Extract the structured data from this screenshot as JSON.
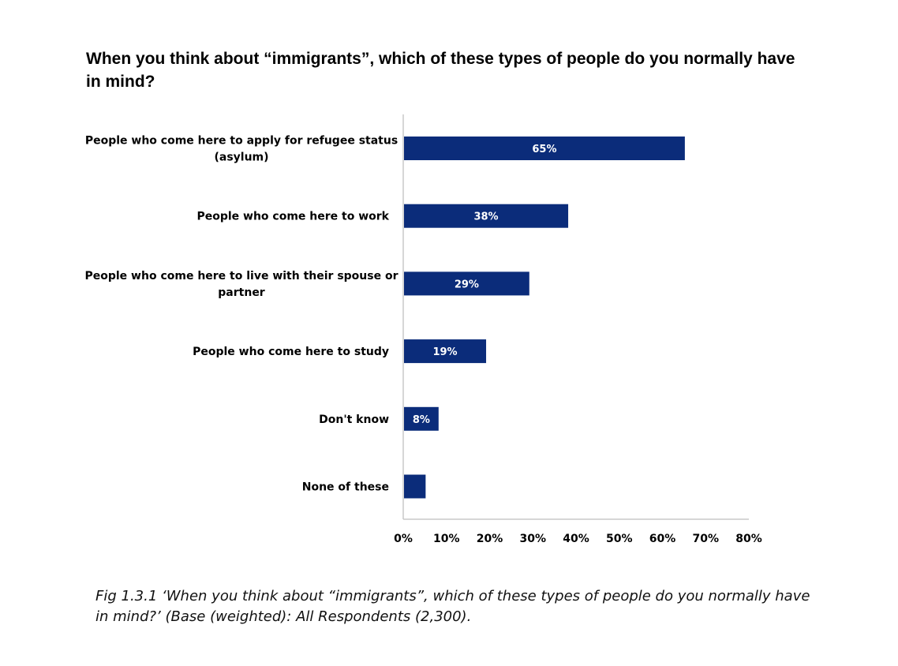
{
  "title": "When you think about “immigrants”, which of these types of people do you normally have in mind?",
  "caption": {
    "fig": "Fig 1.3.1",
    "text": " ‘When you think about “immigrants”, which of these types of people do you normally have in mind?’ (Base (weighted): All Respondents (2,300)."
  },
  "colors": {
    "bar": "#0b2c7a",
    "axis": "#c8c8c8",
    "label_text": "#000000",
    "data_label_text": "#ffffff"
  },
  "chart_data": {
    "type": "bar",
    "orientation": "horizontal",
    "categories": [
      [
        "People who come here to apply for refugee status",
        "(asylum)"
      ],
      [
        "People who come here to work"
      ],
      [
        "People who come here to live with their spouse or",
        "partner"
      ],
      [
        "People who come here to study"
      ],
      [
        "Don't know"
      ],
      [
        "None of these"
      ]
    ],
    "values": [
      65,
      38,
      29,
      19,
      8,
      5
    ],
    "data_labels": [
      "65%",
      "38%",
      "29%",
      "19%",
      "8%",
      ""
    ],
    "xlim": [
      0,
      80
    ],
    "xticks": [
      "0%",
      "10%",
      "20%",
      "30%",
      "40%",
      "50%",
      "60%",
      "70%",
      "80%"
    ],
    "grid": false,
    "legend": "none"
  }
}
